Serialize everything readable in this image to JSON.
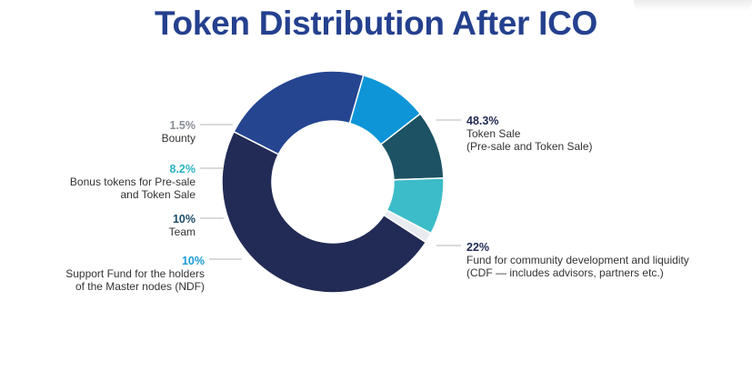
{
  "chart_data": {
    "type": "pie",
    "title": "Token Distribution After ICO",
    "donut": true,
    "slices": [
      {
        "value": 48.3,
        "percent_label": "48.3%",
        "label": "Token Sale\n(Pre-sale and Token Sale)",
        "color": "#222b55",
        "pct_color": "#222b55"
      },
      {
        "value": 22,
        "percent_label": "22%",
        "label": "Fund for community development and liquidity\n(CDF — includes advisors, partners etc.)",
        "color": "#254591",
        "pct_color": "#222b55"
      },
      {
        "value": 10,
        "percent_label": "10%",
        "label": "Support Fund for the holders\nof the Master nodes (NDF)",
        "color": "#0e95d8",
        "pct_color": "#1a9ad9"
      },
      {
        "value": 10,
        "percent_label": "10%",
        "label": "Team",
        "color": "#1c5264",
        "pct_color": "#1c4a66"
      },
      {
        "value": 8.2,
        "percent_label": "8.2%",
        "label": "Bonus tokens for Pre-sale\nand Token Sale",
        "color": "#3cbcc8",
        "pct_color": "#29b3c4"
      },
      {
        "value": 1.5,
        "percent_label": "1.5%",
        "label": "Bounty",
        "color": "#e8ecf1",
        "pct_color": "#8a8f99"
      }
    ]
  }
}
